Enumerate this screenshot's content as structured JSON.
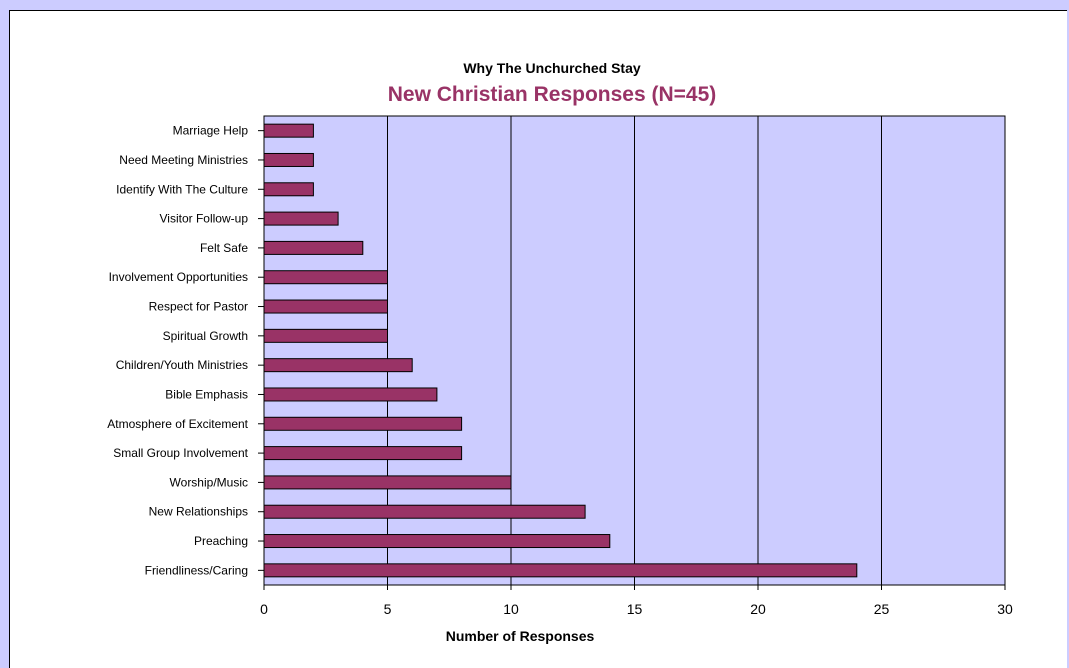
{
  "chart_data": {
    "type": "bar",
    "orientation": "horizontal",
    "title": "Why The Unchurched Stay",
    "subtitle": "New Christian Responses (N=45)",
    "xlabel": "Number of Responses",
    "ylabel": "",
    "xlim": [
      0,
      30
    ],
    "xticks": [
      "0",
      "5",
      "10",
      "15",
      "20",
      "25",
      "30"
    ],
    "categories": [
      "Marriage Help",
      "Need Meeting Ministries",
      "Identify With The Culture",
      "Visitor Follow-up",
      "Felt Safe",
      "Involvement Opportunities",
      "Respect for Pastor",
      "Spiritual Growth",
      "Children/Youth Ministries",
      "Bible Emphasis",
      "Atmosphere of Excitement",
      "Small Group Involvement",
      "Worship/Music",
      "New Relationships",
      "Preaching",
      "Friendliness/Caring"
    ],
    "values": [
      2,
      2,
      2,
      3,
      4,
      5,
      5,
      5,
      6,
      7,
      8,
      8,
      10,
      13,
      14,
      24
    ],
    "grid": "vertical",
    "legend": "none",
    "colors": {
      "bar": "#993366",
      "plot_background": "#ccccff",
      "subtitle": "#993366",
      "page_background": "#ccccff"
    }
  }
}
